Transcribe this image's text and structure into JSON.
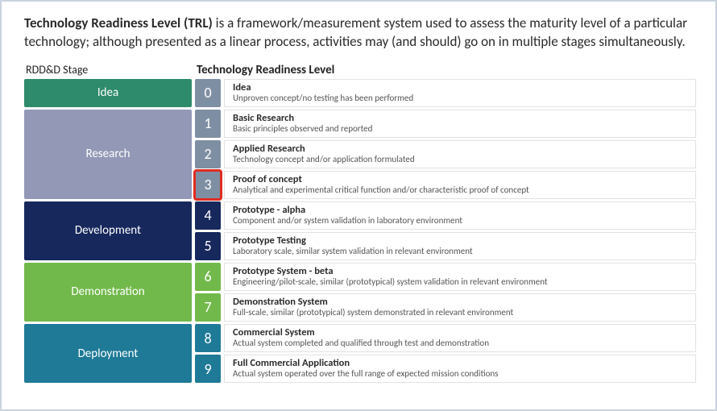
{
  "intro": {
    "bold": "Technology Readiness Level (TRL)",
    "rest": " is a framework/measurement system used to assess the maturity level of a particular technology; although presented as a linear process, activities may (and should) go on in multiple stages simultaneously."
  },
  "headers": {
    "stage": "RDD&D Stage",
    "trl": "Technology Readiness Level"
  },
  "highlight_color": "#e02b20",
  "stages": [
    {
      "name": "Idea",
      "color": "#2e8b6c",
      "levels": [
        {
          "n": "0",
          "num_color": "#7f8fa3",
          "title": "Idea",
          "sub": "Unproven concept/no testing has been performed",
          "highlighted": false
        }
      ]
    },
    {
      "name": "Research",
      "color": "#9298b5",
      "levels": [
        {
          "n": "1",
          "num_color": "#7f8fa3",
          "title": "Basic Research",
          "sub": "Basic principles observed and reported",
          "highlighted": false
        },
        {
          "n": "2",
          "num_color": "#7f8fa3",
          "title": "Applied Research",
          "sub": "Technology concept and/or application formulated",
          "highlighted": false
        },
        {
          "n": "3",
          "num_color": "#7f8fa3",
          "title": "Proof of concept",
          "sub": "Analytical and experimental critical function and/or characteristic proof of concept",
          "highlighted": true
        }
      ]
    },
    {
      "name": "Development",
      "color": "#16285c",
      "levels": [
        {
          "n": "4",
          "num_color": "#16285c",
          "title": "Prototype - alpha",
          "sub": "Component and/or system validation in laboratory environment",
          "highlighted": false
        },
        {
          "n": "5",
          "num_color": "#16285c",
          "title": "Prototype Testing",
          "sub": " Laboratory scale, similar system validation in relevant environment",
          "highlighted": false
        }
      ]
    },
    {
      "name": "Demonstration",
      "color": "#72b94b",
      "levels": [
        {
          "n": "6",
          "num_color": "#72b94b",
          "title": "Prototype System - beta",
          "sub": "Engineering/pilot-scale, similar (prototypical) system validation in relevant environment",
          "highlighted": false
        },
        {
          "n": "7",
          "num_color": "#72b94b",
          "title": " Demonstration System",
          "sub": " Full-scale, similar (prototypical) system demonstrated in relevant environment",
          "highlighted": false
        }
      ]
    },
    {
      "name": "Deployment",
      "color": "#1e7a96",
      "levels": [
        {
          "n": "8",
          "num_color": "#1e7a96",
          "title": "Commercial System",
          "sub": "Actual system completed and qualified through test and demonstration",
          "highlighted": false
        },
        {
          "n": "9",
          "num_color": "#1e7a96",
          "title": "Full Commercial Application",
          "sub": "Actual system operated over the full range of expected mission conditions",
          "highlighted": false
        }
      ]
    }
  ]
}
